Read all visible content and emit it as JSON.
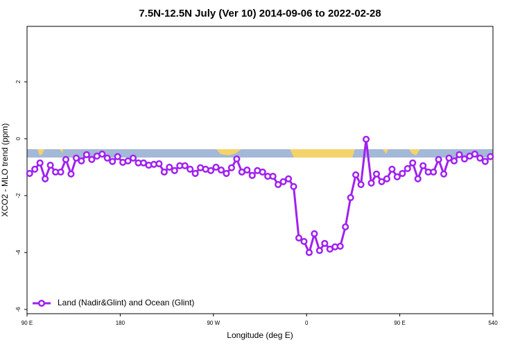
{
  "chart_data": {
    "type": "line",
    "title": "7.5N-12.5N July (Ver 10)   2014-09-06 to 2022-02-28",
    "x_label": "Longitude (deg E)",
    "y_label": "XCO2 - MLO trend (ppm)",
    "xlim": [
      90,
      540
    ],
    "xticks": [
      {
        "value": 90,
        "label": "90 E"
      },
      180,
      {
        "value": 270,
        "label": "90 W"
      },
      {
        "value": 360,
        "label": "0"
      },
      {
        "value": 450,
        "label": "90 E"
      },
      540
    ],
    "ylim": [
      -6.15,
      3.95
    ],
    "yticks": [
      -6,
      -4,
      -2,
      0,
      2
    ],
    "legend": "bottomleft",
    "x": [
      92.5,
      97.5,
      102.5,
      107.5,
      112.5,
      117.5,
      122.5,
      127.5,
      132.5,
      137.5,
      142.5,
      147.5,
      152.5,
      157.5,
      162.5,
      167.5,
      172.5,
      177.5,
      182.5,
      187.5,
      192.5,
      197.5,
      202.5,
      207.5,
      212.5,
      217.5,
      222.5,
      227.5,
      232.5,
      237.5,
      242.5,
      247.5,
      252.5,
      257.5,
      262.5,
      267.5,
      272.5,
      277.5,
      282.5,
      287.5,
      292.5,
      297.5,
      302.5,
      307.5,
      312.5,
      317.5,
      322.5,
      327.5,
      332.5,
      337.5,
      342.5,
      347.5,
      352.5,
      357.5,
      362.5,
      367.5,
      372.5,
      377.5,
      382.5,
      387.5,
      392.5,
      397.5,
      402.5,
      407.5,
      412.5,
      417.5,
      422.5,
      427.5,
      432.5,
      437.5,
      442.5,
      447.5,
      452.5,
      457.5,
      462.5,
      467.5,
      472.5,
      477.5,
      482.5,
      487.5,
      492.5,
      497.5,
      502.5,
      507.5,
      512.5,
      517.5,
      522.5,
      527.5,
      532.5,
      537.5
    ],
    "series": [
      {
        "name": "Land (Nadir&Glint) and Ocean (Glint)",
        "color": "#a020f0",
        "values": [
          -1.22,
          -1.07,
          -0.85,
          -1.41,
          -0.93,
          -1.17,
          -1.17,
          -0.73,
          -1.24,
          -0.68,
          -0.78,
          -0.56,
          -0.73,
          -0.61,
          -0.54,
          -0.68,
          -0.8,
          -0.63,
          -0.83,
          -0.78,
          -0.68,
          -0.85,
          -0.85,
          -0.93,
          -0.9,
          -0.88,
          -1.17,
          -1.0,
          -1.12,
          -0.95,
          -0.95,
          -1.07,
          -1.22,
          -1.02,
          -1.07,
          -1.12,
          -1.0,
          -1.1,
          -1.22,
          -1.02,
          -0.71,
          -1.17,
          -1.1,
          -1.29,
          -1.12,
          -1.17,
          -1.32,
          -1.32,
          -1.61,
          -1.51,
          -1.41,
          -1.68,
          -3.49,
          -3.61,
          -4.0,
          -3.34,
          -3.93,
          -3.68,
          -3.88,
          -3.8,
          -3.78,
          -3.1,
          -2.07,
          -1.27,
          -1.61,
          -0.02,
          -1.56,
          -1.24,
          -1.51,
          -1.41,
          -1.07,
          -1.34,
          -1.22,
          -1.05,
          -0.85,
          -1.41,
          -0.95,
          -1.17,
          -1.17,
          -0.73,
          -1.24,
          -0.68,
          -0.78,
          -0.56,
          -0.71,
          -0.61,
          -0.54,
          -0.68,
          -0.8,
          -0.63
        ]
      }
    ]
  }
}
